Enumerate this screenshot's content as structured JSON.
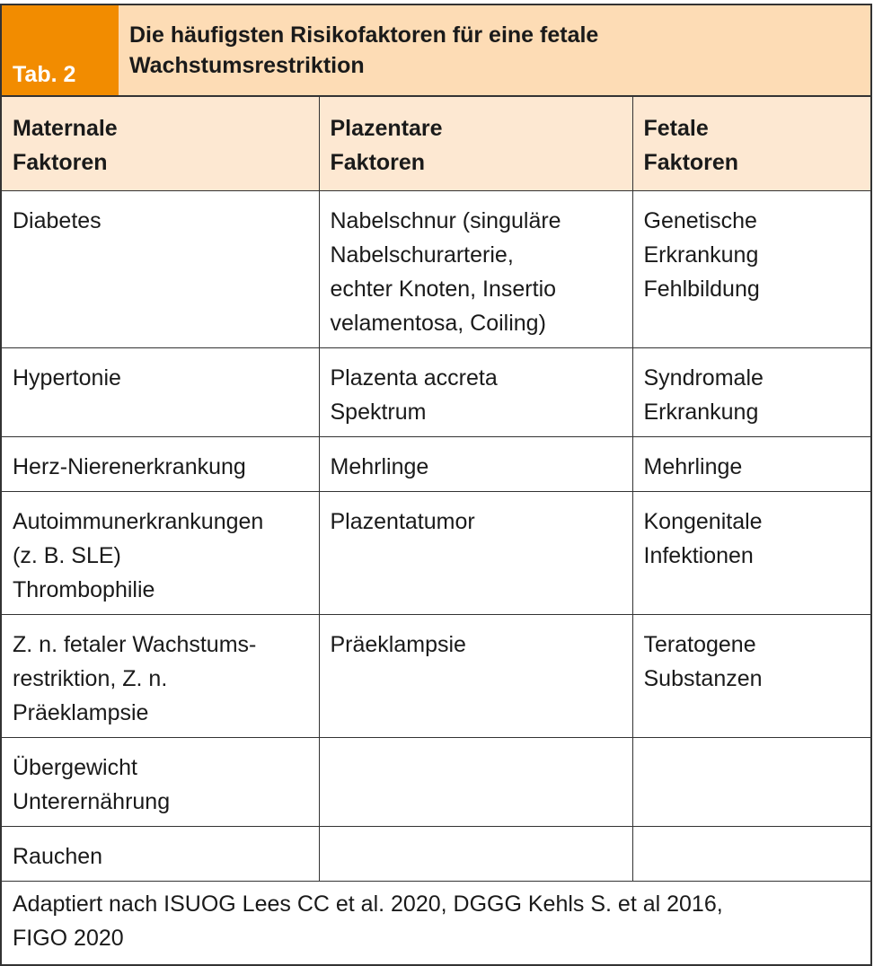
{
  "table": {
    "label": "Tab. 2",
    "title_lines": [
      "Die häufigsten Risikofaktoren für eine fetale",
      "Wachstumsrestriktion"
    ],
    "colors": {
      "label_bg": "#F28C00",
      "title_bg": "#FDDCB5",
      "header_bg": "#FDE8D2"
    },
    "headers": [
      [
        "Maternale",
        "Faktoren"
      ],
      [
        "Plazentare",
        "Faktoren"
      ],
      [
        "Fetale",
        "Faktoren"
      ]
    ],
    "rows": [
      [
        [
          "Diabetes"
        ],
        [
          "Nabelschnur (singuläre",
          "Nabelschurarterie,",
          "echter Knoten, Insertio",
          "velamentosa, Coiling)"
        ],
        [
          "Genetische",
          "Erkrankung",
          "Fehlbildung"
        ]
      ],
      [
        [
          "Hypertonie"
        ],
        [
          "Plazenta accreta",
          "Spektrum"
        ],
        [
          "Syndromale",
          "Erkrankung"
        ]
      ],
      [
        [
          "Herz-Nierenerkrankung"
        ],
        [
          "Mehrlinge"
        ],
        [
          "Mehrlinge"
        ]
      ],
      [
        [
          "Autoimmunerkrankungen",
          "(z. B. SLE)",
          "Thrombophilie"
        ],
        [
          "Plazentatumor"
        ],
        [
          "Kongenitale",
          "Infektionen"
        ]
      ],
      [
        [
          "Z. n. fetaler Wachstums-",
          "restriktion, Z. n.",
          "Präeklampsie"
        ],
        [
          "Präeklampsie"
        ],
        [
          "Teratogene",
          "Substanzen"
        ]
      ],
      [
        [
          "Übergewicht",
          "Unterernährung"
        ],
        [],
        []
      ],
      [
        [
          "Rauchen"
        ],
        [],
        []
      ]
    ],
    "footnote_lines": [
      "Adaptiert nach ISUOG Lees CC et al. 2020, DGGG Kehls S. et al 2016,",
      "FIGO 2020"
    ]
  }
}
